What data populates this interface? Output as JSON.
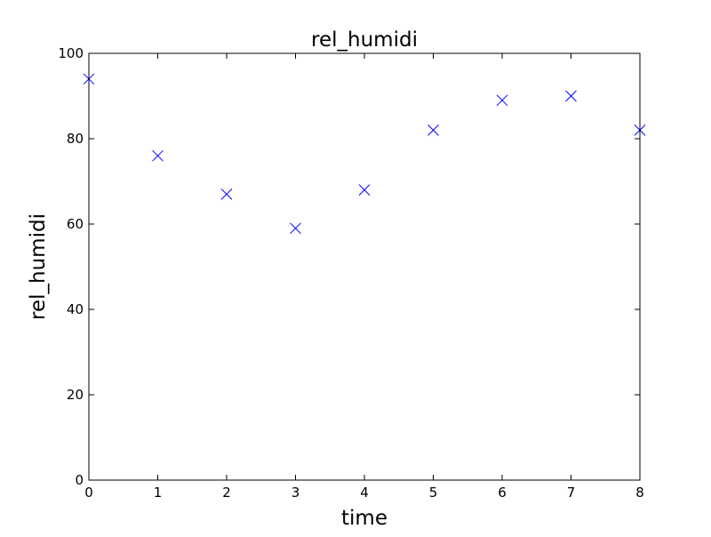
{
  "chart_data": {
    "type": "scatter",
    "title": "rel_humidi",
    "xlabel": "time",
    "ylabel": "rel_humidi",
    "xlim": [
      0,
      8
    ],
    "ylim": [
      0,
      100
    ],
    "xticks": [
      0,
      1,
      2,
      3,
      4,
      5,
      6,
      7,
      8
    ],
    "yticks": [
      0,
      20,
      40,
      60,
      80,
      100
    ],
    "grid": false,
    "marker": "x",
    "series": [
      {
        "color": "#0000ff",
        "x": [
          0,
          1,
          2,
          3,
          4,
          5,
          6,
          7,
          8
        ],
        "y": [
          94,
          76,
          67,
          59,
          68,
          82,
          89,
          90,
          82
        ]
      }
    ]
  }
}
